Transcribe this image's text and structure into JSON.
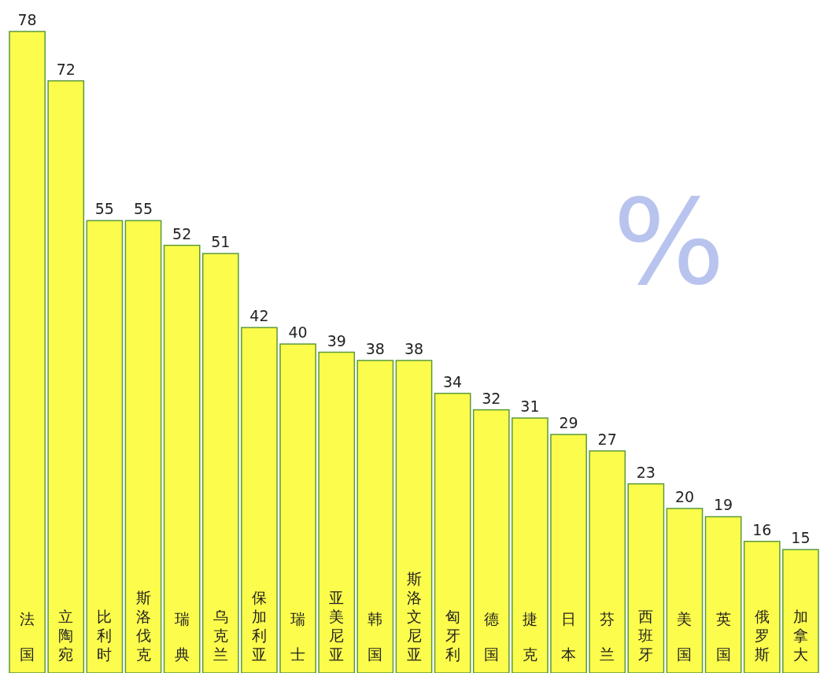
{
  "chart_data": {
    "type": "bar",
    "categories": [
      "法国",
      "立陶宛",
      "比利时",
      "斯洛伐克",
      "瑞典",
      "乌克兰",
      "保加利亚",
      "瑞士",
      "亚美尼亚",
      "韩国",
      "斯洛文尼亚",
      "匈牙利",
      "德国",
      "捷克",
      "日本",
      "芬兰",
      "西班牙",
      "美国",
      "英国",
      "俄罗斯",
      "加拿大"
    ],
    "values": [
      78,
      72,
      55,
      55,
      52,
      51,
      42,
      40,
      39,
      38,
      38,
      34,
      32,
      31,
      29,
      27,
      23,
      20,
      19,
      16,
      15
    ],
    "color": "#fcfc4c",
    "data_labels": true,
    "annotations": [
      "%"
    ]
  }
}
